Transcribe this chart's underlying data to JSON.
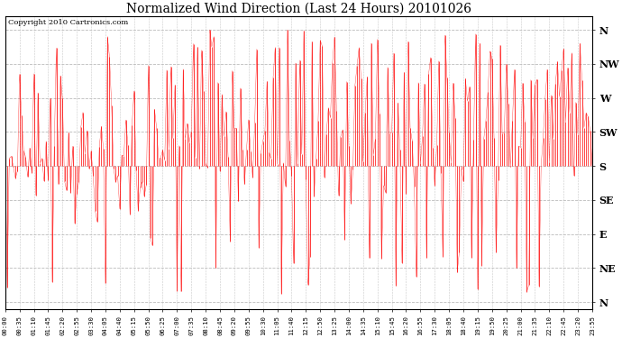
{
  "title": "Normalized Wind Direction (Last 24 Hours) 20101026",
  "copyright_text": "Copyright 2010 Cartronics.com",
  "line_color": "#ff0000",
  "background_color": "white",
  "grid_color": "#bbbbbb",
  "ytick_labels": [
    "N",
    "NW",
    "W",
    "SW",
    "S",
    "SE",
    "E",
    "NE",
    "N"
  ],
  "ytick_values": [
    8,
    7,
    6,
    5,
    4,
    3,
    2,
    1,
    0
  ],
  "xtick_labels": [
    "00:00",
    "00:35",
    "01:10",
    "01:45",
    "02:20",
    "02:55",
    "03:30",
    "04:05",
    "04:40",
    "05:15",
    "05:50",
    "06:25",
    "07:00",
    "07:35",
    "08:10",
    "08:45",
    "09:20",
    "09:55",
    "10:30",
    "11:05",
    "11:40",
    "12:15",
    "12:50",
    "13:25",
    "14:00",
    "14:35",
    "15:10",
    "15:45",
    "16:20",
    "16:55",
    "17:30",
    "18:05",
    "18:40",
    "19:15",
    "19:50",
    "20:25",
    "21:00",
    "21:35",
    "22:10",
    "22:45",
    "23:20",
    "23:55"
  ],
  "num_points": 288,
  "seed": 7
}
